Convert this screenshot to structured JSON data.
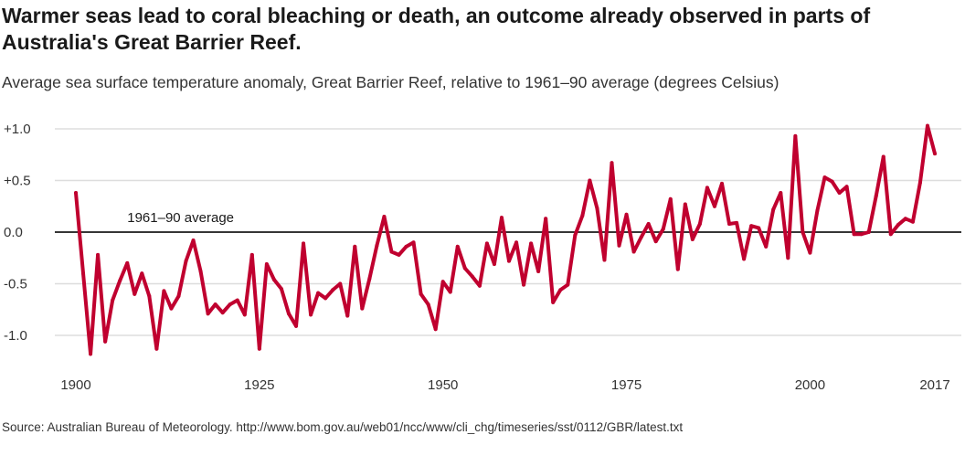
{
  "headline": "Warmer seas lead to coral bleaching or death, an outcome already observed in parts of Australia's Great Barrier Reef.",
  "subtitle": "Average sea surface temperature anomaly, Great Barrier Reef, relative to 1961–90 average (degrees Celsius)",
  "source": "Source: Australian Bureau of Meteorology. http://www.bom.gov.au/web01/ncc/www/cli_chg/timeseries/sst/0112/GBR/latest.txt",
  "colors": {
    "line": "#c0002f",
    "zero_line": "#1a1a1a",
    "grid": "#dddddd"
  },
  "chart_data": {
    "type": "line",
    "title": "Warmer seas lead to coral bleaching or death, an outcome already observed in parts of Australia's Great Barrier Reef.",
    "subtitle": "Average sea surface temperature anomaly, Great Barrier Reef, relative to 1961–90 average (degrees Celsius)",
    "xlabel": "",
    "ylabel": "",
    "xlim": [
      1900,
      2017
    ],
    "ylim": [
      -1.25,
      1.1
    ],
    "grid": true,
    "legend": "none",
    "x_ticks": [
      {
        "value": 1900,
        "label": "1900"
      },
      {
        "value": 1925,
        "label": "1925"
      },
      {
        "value": 1950,
        "label": "1950"
      },
      {
        "value": 1975,
        "label": "1975"
      },
      {
        "value": 2000,
        "label": "2000"
      },
      {
        "value": 2017,
        "label": "2017"
      }
    ],
    "y_ticks": [
      {
        "value": 1.0,
        "label": "+1.0"
      },
      {
        "value": 0.5,
        "label": "+0.5"
      },
      {
        "value": 0.0,
        "label": "0.0"
      },
      {
        "value": -0.5,
        "label": "-0.5"
      },
      {
        "value": -1.0,
        "label": "-1.0"
      }
    ],
    "reference_line": {
      "value": 0.0,
      "label": "1961–90 average"
    },
    "x": [
      1900,
      1901,
      1902,
      1903,
      1904,
      1905,
      1906,
      1907,
      1908,
      1909,
      1910,
      1911,
      1912,
      1913,
      1914,
      1915,
      1916,
      1917,
      1918,
      1919,
      1920,
      1921,
      1922,
      1923,
      1924,
      1925,
      1926,
      1927,
      1928,
      1929,
      1930,
      1931,
      1932,
      1933,
      1934,
      1935,
      1936,
      1937,
      1938,
      1939,
      1940,
      1941,
      1942,
      1943,
      1944,
      1945,
      1946,
      1947,
      1948,
      1949,
      1950,
      1951,
      1952,
      1953,
      1954,
      1955,
      1956,
      1957,
      1958,
      1959,
      1960,
      1961,
      1962,
      1963,
      1964,
      1965,
      1966,
      1967,
      1968,
      1969,
      1970,
      1971,
      1972,
      1973,
      1974,
      1975,
      1976,
      1977,
      1978,
      1979,
      1980,
      1981,
      1982,
      1983,
      1984,
      1985,
      1986,
      1987,
      1988,
      1989,
      1990,
      1991,
      1992,
      1993,
      1994,
      1995,
      1996,
      1997,
      1998,
      1999,
      2000,
      2001,
      2002,
      2003,
      2004,
      2005,
      2006,
      2007,
      2008,
      2009,
      2010,
      2011,
      2012,
      2013,
      2014,
      2015,
      2016,
      2017
    ],
    "series": [
      {
        "values": [
          0.38,
          -0.4,
          -1.18,
          -0.22,
          -1.06,
          -0.66,
          -0.47,
          -0.3,
          -0.6,
          -0.4,
          -0.62,
          -1.13,
          -0.57,
          -0.74,
          -0.62,
          -0.28,
          -0.08,
          -0.38,
          -0.79,
          -0.7,
          -0.78,
          -0.7,
          -0.66,
          -0.8,
          -0.22,
          -1.13,
          -0.31,
          -0.46,
          -0.55,
          -0.79,
          -0.91,
          -0.11,
          -0.8,
          -0.59,
          -0.64,
          -0.56,
          -0.5,
          -0.81,
          -0.14,
          -0.74,
          -0.45,
          -0.13,
          0.15,
          -0.19,
          -0.22,
          -0.14,
          -0.1,
          -0.6,
          -0.7,
          -0.94,
          -0.48,
          -0.58,
          -0.14,
          -0.35,
          -0.43,
          -0.52,
          -0.11,
          -0.31,
          0.14,
          -0.28,
          -0.1,
          -0.51,
          -0.11,
          -0.38,
          0.13,
          -0.68,
          -0.56,
          -0.51,
          -0.03,
          0.16,
          0.5,
          0.23,
          -0.27,
          0.67,
          -0.13,
          0.17,
          -0.19,
          -0.05,
          0.08,
          -0.09,
          0.03,
          0.32,
          -0.36,
          0.27,
          -0.07,
          0.08,
          0.43,
          0.25,
          0.47,
          0.08,
          0.09,
          -0.26,
          0.06,
          0.04,
          -0.14,
          0.22,
          0.38,
          -0.25,
          0.93,
          0.0,
          -0.2,
          0.21,
          0.53,
          0.49,
          0.38,
          0.44,
          -0.02,
          -0.02,
          0.0,
          0.35,
          0.73,
          -0.02,
          0.07,
          0.13,
          0.1,
          0.48,
          1.03,
          0.76
        ]
      }
    ]
  }
}
